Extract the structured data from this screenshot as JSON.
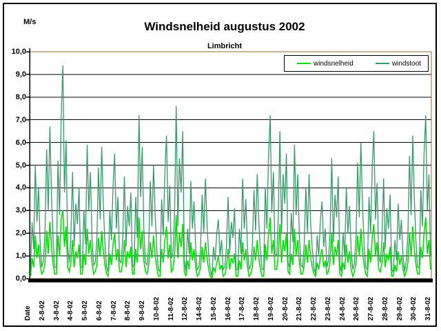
{
  "header": {
    "unit_label": "M/s",
    "title": "Windsnelheid augustus 2002",
    "subtitle": "Limbricht"
  },
  "legend": {
    "items": [
      {
        "label": "windsnelheid",
        "color": "#00E000"
      },
      {
        "label": "windstoot",
        "color": "#339966"
      }
    ]
  },
  "axes": {
    "y_ticks": [
      "10,0",
      "9,0",
      "8,0",
      "7,0",
      "6,0",
      "5,0",
      "4,0",
      "3,0",
      "2,0",
      "1,0",
      "0,0"
    ],
    "x_ticks": [
      "Date",
      "2-8-02",
      "3-8-02",
      "4-8-02",
      "5-8-02",
      "6-8-02",
      "7-8-02",
      "8-8-02",
      "9-8-02",
      "10-8-02",
      "11-8-02",
      "12-8-02",
      "14-8-02",
      "15-8-02",
      "16-8-02",
      "17-8-02",
      "18-8-02",
      "19-8-02",
      "20-8-02",
      "21-8-02",
      "22-8-02",
      "23-8-02",
      "24-8-02",
      "26-8-02",
      "27-8-02",
      "28-8-02",
      "29-8-02",
      "30-8-02",
      "31-8-02"
    ]
  },
  "chart_data": {
    "type": "line",
    "title": "Windsnelheid augustus 2002",
    "subtitle": "Limbricht",
    "ylabel": "M/s",
    "xlabel": "Date",
    "ylim": [
      0,
      10
    ],
    "y_step": 1.0,
    "grid": true,
    "legend_position": "top-right",
    "x_description": "August 2002, 8 samples per day, days 1-31 (x labels skip 13-8-02 and 25-8-02)",
    "plot_border_color": "#996633",
    "gridline_color": "#000000",
    "axis_color": "#000000",
    "daily_peak_windstoot": [
      5.0,
      6.7,
      9.4,
      4.7,
      5.9,
      5.8,
      5.5,
      4.5,
      7.2,
      5.0,
      6.3,
      7.6,
      4.3,
      4.4,
      2.6,
      3.6,
      4.4,
      4.6,
      7.2,
      6.5,
      5.9,
      4.6,
      3.4,
      5.3,
      4.0,
      6.0,
      6.5,
      4.4,
      3.3,
      6.3,
      7.2
    ],
    "series": [
      {
        "name": "windstoot",
        "color": "#339966",
        "values": [
          0.4,
          2.5,
          1.3,
          5.0,
          2.5,
          4.0,
          1.5,
          0.5,
          0.8,
          2.0,
          5.7,
          3.0,
          6.7,
          3.7,
          1.7,
          0.5,
          0.5,
          5.2,
          2.8,
          7.1,
          9.4,
          3.8,
          6.1,
          1.4,
          0.7,
          1.9,
          4.7,
          1.4,
          3.3,
          2.4,
          4.0,
          0.5,
          0.5,
          3.0,
          1.5,
          5.9,
          3.0,
          4.7,
          1.8,
          0.6,
          0.7,
          1.7,
          4.9,
          2.6,
          5.8,
          3.2,
          1.5,
          0.5,
          0.3,
          3.0,
          1.7,
          4.1,
          5.5,
          2.2,
          3.6,
          0.8,
          0.7,
          1.8,
          4.5,
          1.4,
          3.2,
          2.3,
          3.8,
          0.5,
          0.6,
          3.6,
          1.8,
          7.2,
          3.6,
          5.8,
          2.2,
          0.7,
          0.6,
          1.5,
          4.3,
          2.3,
          5.0,
          2.8,
          1.3,
          0.4,
          0.3,
          3.5,
          1.9,
          4.7,
          6.3,
          2.5,
          4.1,
          0.9,
          1.1,
          3.0,
          7.6,
          2.3,
          5.3,
          3.8,
          6.5,
          0.8,
          0.3,
          2.2,
          1.1,
          4.3,
          2.2,
          3.4,
          1.3,
          0.4,
          0.5,
          1.3,
          3.7,
          2.0,
          4.4,
          2.4,
          1.1,
          0.4,
          0.1,
          1.4,
          0.8,
          2.0,
          2.6,
          1.0,
          1.7,
          0.4,
          0.5,
          1.4,
          3.6,
          1.1,
          2.5,
          1.8,
          3.1,
          0.4,
          0.4,
          2.2,
          1.1,
          4.4,
          2.2,
          3.5,
          1.3,
          0.4,
          0.6,
          1.4,
          3.9,
          2.1,
          4.6,
          2.5,
          1.2,
          0.4,
          0.4,
          4.0,
          2.2,
          5.4,
          7.2,
          2.9,
          4.7,
          1.1,
          1.0,
          2.6,
          6.5,
          2.0,
          4.6,
          3.3,
          5.5,
          0.7,
          0.5,
          2.9,
          1.6,
          5.9,
          2.8,
          4.6,
          1.9,
          0.6,
          0.5,
          1.5,
          4.0,
          2.0,
          4.6,
          2.4,
          1.3,
          0.5,
          0.2,
          1.9,
          1.0,
          2.6,
          3.4,
          1.4,
          2.2,
          0.5,
          0.8,
          2.1,
          5.3,
          1.6,
          3.7,
          2.7,
          4.5,
          0.6,
          0.3,
          2.0,
          1.0,
          4.0,
          2.0,
          3.2,
          1.2,
          0.4,
          0.7,
          1.8,
          5.1,
          2.7,
          6.0,
          3.3,
          1.5,
          0.5,
          0.4,
          3.6,
          2.0,
          4.9,
          6.5,
          2.6,
          4.2,
          1.0,
          0.7,
          1.8,
          4.4,
          1.3,
          3.1,
          2.2,
          3.7,
          0.4,
          0.3,
          1.7,
          0.8,
          3.3,
          1.7,
          2.6,
          1.0,
          0.3,
          0.8,
          1.9,
          5.4,
          2.8,
          6.3,
          3.5,
          1.6,
          0.5,
          0.5,
          3.9,
          2.3,
          5.5,
          7.2,
          3.0,
          4.6,
          1.0
        ]
      },
      {
        "name": "windsnelheid",
        "color": "#00E000",
        "values": [
          0.1,
          0.9,
          0.5,
          1.9,
          0.9,
          1.5,
          0.6,
          0.2,
          0.3,
          0.7,
          2.1,
          1.1,
          2.5,
          1.4,
          0.6,
          0.2,
          0.2,
          1.9,
          1.0,
          2.6,
          3.0,
          1.4,
          2.3,
          0.5,
          0.3,
          0.7,
          1.7,
          0.5,
          1.2,
          0.9,
          1.5,
          0.2,
          0.2,
          1.1,
          0.6,
          2.2,
          1.1,
          1.7,
          0.7,
          0.2,
          0.3,
          0.6,
          1.8,
          1.0,
          2.1,
          1.2,
          0.6,
          0.2,
          0.1,
          1.1,
          0.6,
          1.5,
          2.0,
          0.8,
          1.3,
          0.3,
          0.3,
          0.7,
          1.7,
          0.5,
          1.2,
          0.9,
          1.4,
          0.2,
          0.2,
          1.3,
          0.7,
          2.7,
          1.3,
          2.1,
          0.8,
          0.3,
          0.2,
          0.6,
          1.6,
          0.9,
          1.9,
          1.0,
          0.5,
          0.1,
          0.1,
          1.3,
          0.7,
          1.7,
          2.3,
          0.9,
          1.5,
          0.3,
          0.4,
          1.1,
          2.8,
          0.9,
          2.0,
          1.4,
          2.4,
          0.3,
          0.1,
          0.8,
          0.4,
          1.6,
          0.8,
          1.3,
          0.5,
          0.1,
          0.2,
          0.5,
          1.4,
          0.7,
          1.6,
          0.9,
          0.4,
          0.1,
          0.0,
          0.5,
          0.3,
          0.7,
          1.0,
          0.4,
          0.6,
          0.1,
          0.2,
          0.5,
          1.3,
          0.4,
          0.9,
          0.7,
          1.1,
          0.1,
          0.1,
          0.8,
          0.4,
          1.6,
          0.8,
          1.3,
          0.5,
          0.1,
          0.2,
          0.5,
          1.4,
          0.8,
          1.7,
          0.9,
          0.4,
          0.1,
          0.1,
          1.5,
          0.8,
          2.0,
          2.7,
          1.1,
          1.7,
          0.4,
          0.4,
          1.0,
          2.4,
          0.7,
          1.7,
          1.2,
          2.0,
          0.3,
          0.2,
          1.1,
          0.6,
          2.2,
          1.0,
          1.7,
          0.7,
          0.2,
          0.2,
          0.6,
          1.5,
          0.7,
          1.7,
          0.9,
          0.5,
          0.2,
          0.1,
          0.7,
          0.4,
          1.0,
          1.3,
          0.5,
          0.8,
          0.2,
          0.3,
          0.8,
          2.0,
          0.6,
          1.4,
          1.0,
          1.7,
          0.2,
          0.1,
          0.7,
          0.4,
          1.5,
          0.7,
          1.2,
          0.4,
          0.1,
          0.3,
          0.7,
          1.9,
          1.0,
          2.2,
          1.2,
          0.6,
          0.2,
          0.1,
          1.3,
          0.7,
          1.8,
          2.4,
          1.0,
          1.6,
          0.4,
          0.3,
          0.7,
          1.6,
          0.5,
          1.1,
          0.8,
          1.4,
          0.1,
          0.1,
          0.6,
          0.3,
          1.2,
          0.6,
          1.0,
          0.4,
          0.1,
          0.3,
          0.7,
          2.0,
          1.0,
          2.3,
          1.3,
          0.6,
          0.2,
          0.2,
          1.4,
          0.9,
          2.0,
          2.7,
          1.1,
          1.7,
          0.4
        ]
      }
    ]
  }
}
